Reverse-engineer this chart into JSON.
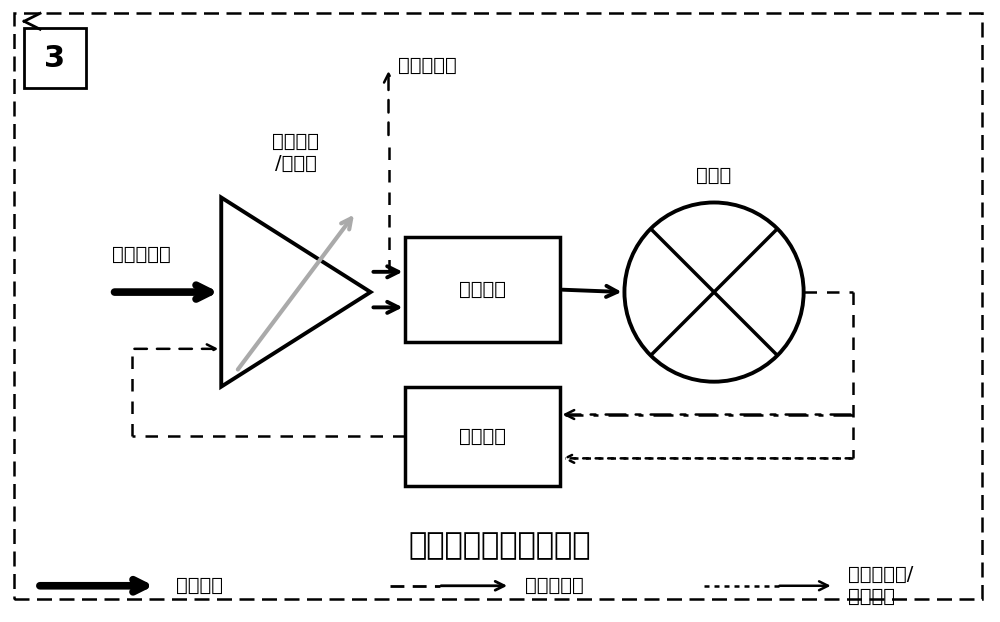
{
  "bg_color": "#ffffff",
  "title": "自适应增益混频器框图",
  "title_fontsize": 22,
  "label_3": "3",
  "label_rf_input": "射频输入端",
  "label_vga": "可变跨导\n/放大级",
  "label_if_output": "中频输出端",
  "label_hpf": "高通滤波",
  "label_lpf": "低通滤波",
  "label_mixer": "混频级",
  "legend_rf": "射频信号",
  "legend_up": "上变频产物",
  "legend_down": "下变频产物/\n中频信号",
  "font_color": "#000000",
  "main_font_size": 14,
  "legend_font_size": 14,
  "label3_fontsize": 22
}
